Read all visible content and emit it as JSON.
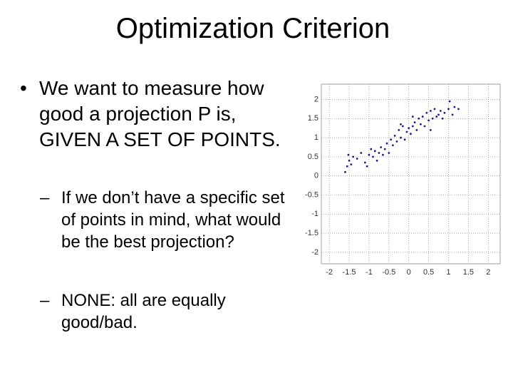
{
  "slide": {
    "title": "Optimization Criterion",
    "bullets": [
      {
        "text": "We want to measure how good a projection P is, GIVEN A SET OF POINTS.",
        "subbullets": [
          "If we don’t have a specific set of points in mind, what would be the best projection?",
          "NONE: all are equally good/bad."
        ]
      }
    ]
  },
  "chart_data": {
    "type": "scatter",
    "color": "#1c1c8a",
    "grid": true,
    "xlim": [
      -2.2,
      2.3
    ],
    "ylim": [
      -2.3,
      2.4
    ],
    "xticks": [
      -2,
      -1.5,
      -1,
      -0.5,
      0,
      0.5,
      1,
      1.5,
      2
    ],
    "yticks": [
      2,
      1.5,
      1,
      0.5,
      0,
      -0.5,
      -1,
      -1.5,
      -2
    ],
    "x": [
      -1.6,
      -1.55,
      -1.5,
      -1.52,
      -1.45,
      -1.4,
      -1.3,
      -1.2,
      -1.1,
      -1.05,
      -1.0,
      -0.95,
      -0.9,
      -0.85,
      -0.8,
      -0.75,
      -0.7,
      -0.65,
      -0.6,
      -0.55,
      -0.5,
      -0.45,
      -0.4,
      -0.35,
      -0.3,
      -0.25,
      -0.2,
      -0.15,
      -0.1,
      -0.05,
      0.0,
      0.05,
      0.1,
      0.15,
      0.2,
      0.25,
      0.3,
      0.35,
      0.4,
      0.45,
      0.5,
      0.55,
      0.6,
      0.65,
      0.7,
      0.75,
      0.8,
      0.85,
      0.9,
      1.0,
      1.03,
      1.1,
      1.15,
      1.25,
      0.55,
      -0.2,
      0.1
    ],
    "values": [
      0.1,
      0.25,
      0.4,
      0.55,
      0.3,
      0.5,
      0.45,
      0.6,
      0.35,
      0.25,
      0.55,
      0.7,
      0.5,
      0.65,
      0.4,
      0.6,
      0.75,
      0.55,
      0.7,
      0.85,
      0.6,
      0.95,
      0.8,
      1.05,
      0.9,
      1.2,
      1.0,
      1.3,
      0.95,
      1.15,
      1.25,
      1.1,
      1.3,
      1.4,
      1.2,
      1.5,
      1.35,
      1.55,
      1.3,
      1.65,
      1.45,
      1.7,
      1.5,
      1.75,
      1.55,
      1.6,
      1.7,
      1.5,
      1.65,
      1.75,
      1.95,
      1.6,
      1.8,
      1.75,
      1.2,
      1.35,
      1.55
    ]
  }
}
